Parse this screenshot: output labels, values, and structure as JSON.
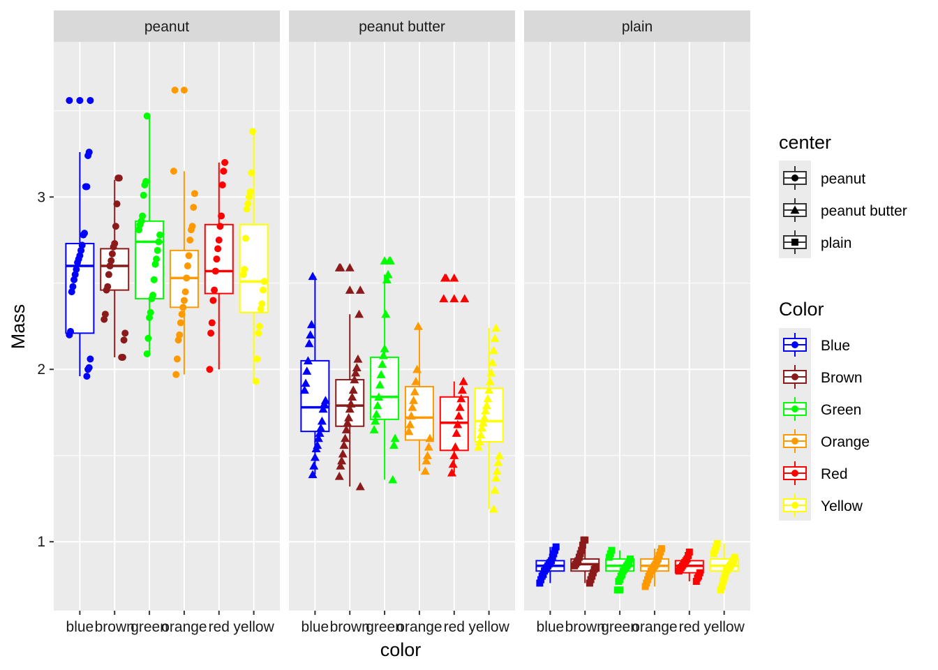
{
  "chart_data": {
    "type": "boxplot",
    "facet_by": "center",
    "facets": [
      "peanut",
      "peanut butter",
      "plain"
    ],
    "categories": [
      "blue",
      "brown",
      "green",
      "orange",
      "red",
      "yellow"
    ],
    "xlabel": "color",
    "ylabel": "Mass",
    "ylim": [
      0.6,
      3.9
    ],
    "y_ticks": [
      1,
      2,
      3
    ],
    "grid": true,
    "colors": {
      "blue": "#0000ff",
      "brown": "#8b1a1a",
      "green": "#00ff00",
      "orange": "#ff9900",
      "red": "#ff0000",
      "yellow": "#ffff00"
    },
    "boxes": {
      "peanut": {
        "blue": {
          "q1": 2.21,
          "median": 2.6,
          "q3": 2.73,
          "lower": 1.96,
          "upper": 3.26,
          "outliers": [
            3.56
          ]
        },
        "brown": {
          "q1": 2.46,
          "median": 2.6,
          "q3": 2.7,
          "lower": 2.07,
          "upper": 3.1,
          "outliers": []
        },
        "green": {
          "q1": 2.41,
          "median": 2.74,
          "q3": 2.86,
          "lower": 2.09,
          "upper": 3.48,
          "outliers": []
        },
        "orange": {
          "q1": 2.36,
          "median": 2.53,
          "q3": 2.69,
          "lower": 1.97,
          "upper": 3.15,
          "outliers": [
            3.62
          ]
        },
        "red": {
          "q1": 2.44,
          "median": 2.57,
          "q3": 2.84,
          "lower": 2.0,
          "upper": 3.2,
          "outliers": []
        },
        "yellow": {
          "q1": 2.33,
          "median": 2.51,
          "q3": 2.84,
          "lower": 1.93,
          "upper": 3.38,
          "outliers": []
        }
      },
      "peanut butter": {
        "blue": {
          "q1": 1.64,
          "median": 1.78,
          "q3": 2.05,
          "lower": 1.39,
          "upper": 2.54,
          "outliers": []
        },
        "brown": {
          "q1": 1.67,
          "median": 1.79,
          "q3": 1.94,
          "lower": 1.32,
          "upper": 2.32,
          "outliers": [
            2.46,
            2.59
          ]
        },
        "green": {
          "q1": 1.71,
          "median": 1.84,
          "q3": 2.07,
          "lower": 1.36,
          "upper": 2.55,
          "outliers": [
            2.63
          ]
        },
        "orange": {
          "q1": 1.59,
          "median": 1.72,
          "q3": 1.9,
          "lower": 1.41,
          "upper": 2.25,
          "outliers": []
        },
        "red": {
          "q1": 1.53,
          "median": 1.69,
          "q3": 1.84,
          "lower": 1.4,
          "upper": 1.93,
          "outliers": [
            2.41,
            2.53
          ]
        },
        "yellow": {
          "q1": 1.58,
          "median": 1.7,
          "q3": 1.89,
          "lower": 1.19,
          "upper": 2.24,
          "outliers": []
        }
      },
      "plain": {
        "blue": {
          "q1": 0.83,
          "median": 0.86,
          "q3": 0.89,
          "lower": 0.76,
          "upper": 0.97,
          "outliers": []
        },
        "brown": {
          "q1": 0.83,
          "median": 0.87,
          "q3": 0.9,
          "lower": 0.76,
          "upper": 0.98,
          "outliers": [
            1.01
          ]
        },
        "green": {
          "q1": 0.83,
          "median": 0.86,
          "q3": 0.9,
          "lower": 0.77,
          "upper": 0.95,
          "outliers": [
            0.72
          ]
        },
        "orange": {
          "q1": 0.83,
          "median": 0.86,
          "q3": 0.9,
          "lower": 0.74,
          "upper": 0.96,
          "outliers": []
        },
        "red": {
          "q1": 0.82,
          "median": 0.86,
          "q3": 0.89,
          "lower": 0.77,
          "upper": 0.94,
          "outliers": []
        },
        "yellow": {
          "q1": 0.83,
          "median": 0.86,
          "q3": 0.9,
          "lower": 0.72,
          "upper": 0.99,
          "outliers": []
        }
      }
    },
    "points": {
      "peanut": {
        "blue": [
          3.56,
          3.56,
          3.26,
          3.24,
          3.06,
          3.06,
          2.79,
          2.78,
          2.72,
          2.69,
          2.66,
          2.64,
          2.62,
          2.58,
          2.55,
          2.52,
          2.48,
          2.45,
          2.22,
          2.2,
          2.06,
          2.01,
          2.0,
          1.96
        ],
        "brown": [
          3.11,
          3.11,
          2.96,
          2.83,
          2.73,
          2.71,
          2.67,
          2.63,
          2.6,
          2.55,
          2.48,
          2.46,
          2.32,
          2.29,
          2.21,
          2.17,
          2.07,
          2.07
        ],
        "green": [
          3.47,
          3.09,
          3.07,
          3.01,
          2.89,
          2.86,
          2.84,
          2.81,
          2.78,
          2.74,
          2.69,
          2.64,
          2.61,
          2.52,
          2.43,
          2.41,
          2.33,
          2.3,
          2.18,
          2.09
        ],
        "orange": [
          3.62,
          3.15,
          3.02,
          2.94,
          2.83,
          2.81,
          2.75,
          2.66,
          2.6,
          2.53,
          2.45,
          2.4,
          2.36,
          2.32,
          2.27,
          2.2,
          2.17,
          2.06,
          1.97
        ],
        "red": [
          3.2,
          3.15,
          3.07,
          2.89,
          2.83,
          2.75,
          2.7,
          2.64,
          2.57,
          2.46,
          2.4,
          2.27,
          2.21,
          2.0
        ],
        "yellow": [
          3.38,
          3.14,
          3.03,
          3.0,
          2.96,
          2.93,
          2.76,
          2.58,
          2.55,
          2.51,
          2.46,
          2.38,
          2.35,
          2.25,
          2.21,
          2.06,
          1.93
        ]
      },
      "peanut butter": {
        "blue": [
          2.54,
          2.26,
          2.2,
          2.15,
          2.05,
          1.99,
          1.92,
          1.88,
          1.82,
          1.8,
          1.77,
          1.7,
          1.66,
          1.63,
          1.6,
          1.56,
          1.54,
          1.49,
          1.44,
          1.39
        ],
        "brown": [
          2.59,
          2.59,
          2.46,
          2.32,
          2.06,
          2.01,
          1.98,
          1.94,
          1.88,
          1.84,
          1.8,
          1.77,
          1.72,
          1.69,
          1.65,
          1.6,
          1.56,
          1.51,
          1.47,
          1.44,
          1.38,
          1.32
        ],
        "green": [
          2.63,
          2.63,
          2.55,
          2.52,
          2.32,
          2.12,
          2.08,
          2.03,
          1.97,
          1.91,
          1.84,
          1.79,
          1.74,
          1.7,
          1.65,
          1.6,
          1.56,
          1.36
        ],
        "orange": [
          2.25,
          2.0,
          1.93,
          1.87,
          1.82,
          1.78,
          1.73,
          1.68,
          1.64,
          1.6,
          1.55,
          1.5,
          1.47,
          1.41
        ],
        "red": [
          2.53,
          2.53,
          2.41,
          2.41,
          1.93,
          1.88,
          1.83,
          1.78,
          1.73,
          1.68,
          1.63,
          1.55,
          1.5,
          1.45,
          1.4
        ],
        "yellow": [
          2.24,
          2.18,
          2.11,
          2.04,
          1.98,
          1.93,
          1.88,
          1.83,
          1.79,
          1.76,
          1.72,
          1.69,
          1.66,
          1.62,
          1.58,
          1.55,
          1.5,
          1.46,
          1.41,
          1.37,
          1.3,
          1.19
        ]
      },
      "plain": {
        "blue": [
          0.97,
          0.95,
          0.93,
          0.91,
          0.89,
          0.88,
          0.87,
          0.86,
          0.85,
          0.84,
          0.83,
          0.81,
          0.8,
          0.78,
          0.76
        ],
        "brown": [
          1.01,
          0.98,
          0.95,
          0.93,
          0.91,
          0.89,
          0.88,
          0.87,
          0.86,
          0.85,
          0.84,
          0.82,
          0.8,
          0.78,
          0.76
        ],
        "green": [
          0.95,
          0.93,
          0.91,
          0.9,
          0.88,
          0.87,
          0.86,
          0.85,
          0.84,
          0.83,
          0.81,
          0.8,
          0.78,
          0.77,
          0.72
        ],
        "orange": [
          0.96,
          0.94,
          0.92,
          0.9,
          0.89,
          0.87,
          0.86,
          0.85,
          0.84,
          0.83,
          0.81,
          0.8,
          0.78,
          0.76,
          0.74
        ],
        "red": [
          0.94,
          0.92,
          0.9,
          0.89,
          0.88,
          0.87,
          0.86,
          0.85,
          0.84,
          0.83,
          0.82,
          0.8,
          0.79,
          0.77
        ],
        "yellow": [
          0.99,
          0.97,
          0.95,
          0.93,
          0.91,
          0.89,
          0.88,
          0.87,
          0.86,
          0.85,
          0.84,
          0.83,
          0.81,
          0.79,
          0.77,
          0.74,
          0.72
        ]
      }
    },
    "legend": {
      "position": "right",
      "center": {
        "title": "center",
        "entries": [
          {
            "label": "peanut",
            "shape": "circle"
          },
          {
            "label": "peanut butter",
            "shape": "triangle"
          },
          {
            "label": "plain",
            "shape": "square"
          }
        ]
      },
      "color": {
        "title": "Color",
        "entries": [
          {
            "label": "Blue",
            "key": "blue"
          },
          {
            "label": "Brown",
            "key": "brown"
          },
          {
            "label": "Green",
            "key": "green"
          },
          {
            "label": "Orange",
            "key": "orange"
          },
          {
            "label": "Red",
            "key": "red"
          },
          {
            "label": "Yellow",
            "key": "yellow"
          }
        ]
      }
    }
  }
}
